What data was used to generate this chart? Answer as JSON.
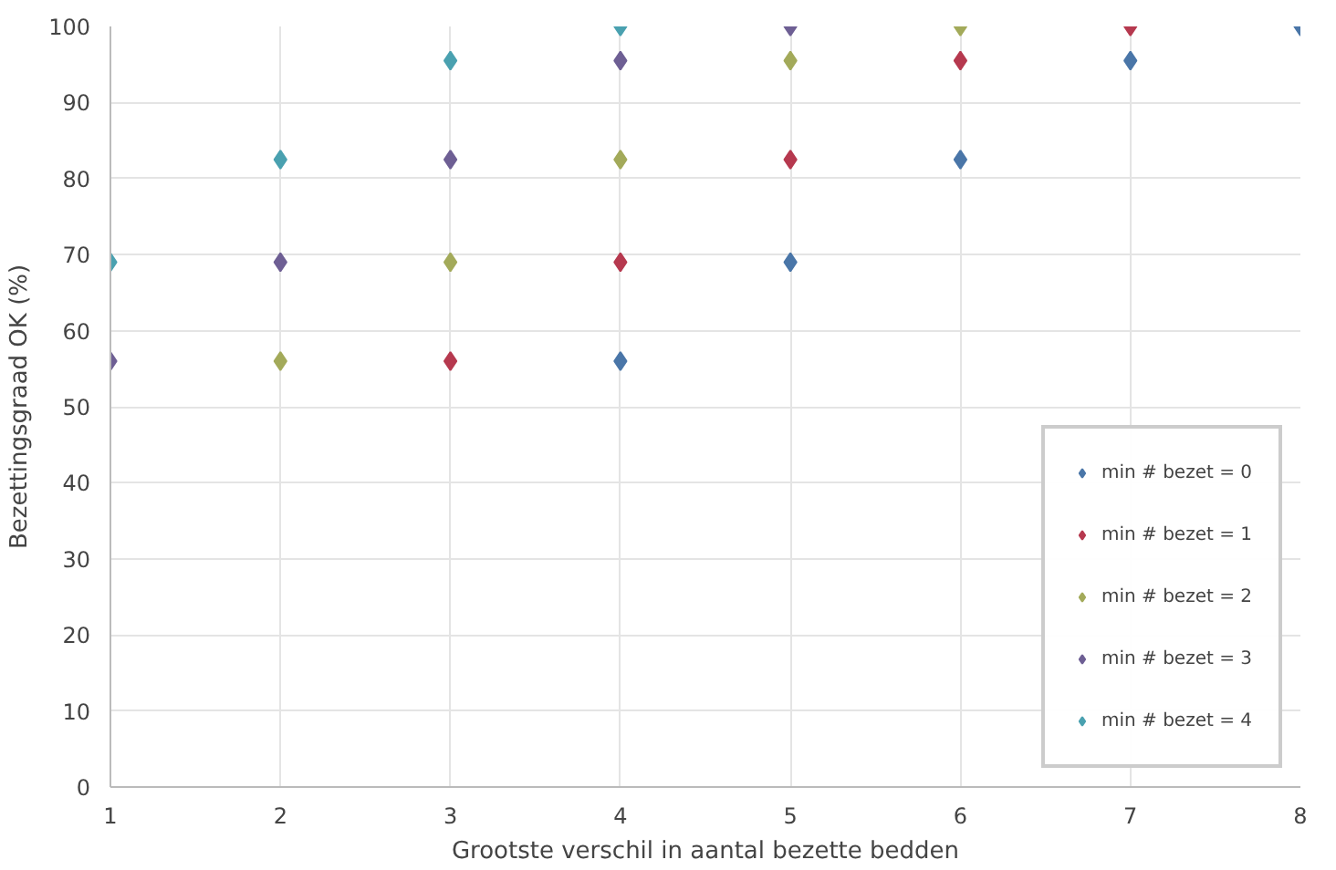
{
  "chart_data": {
    "type": "scatter",
    "xlabel": "Grootste verschil in aantal bezette bedden",
    "ylabel": "Bezettingsgraad OK (%)",
    "xlim": [
      1,
      8
    ],
    "xticks": [
      1,
      2,
      3,
      4,
      5,
      6,
      7,
      8
    ],
    "ylim": [
      0,
      100
    ],
    "yticks": [
      0,
      10,
      20,
      30,
      40,
      50,
      60,
      70,
      80,
      90,
      100
    ],
    "grid": true,
    "legend": "bottom right",
    "marker": "diamond",
    "series": [
      {
        "name": "min # bezet = 0",
        "color": "#4a76a8",
        "x": [
          4,
          5,
          6,
          7,
          8
        ],
        "values": [
          56,
          69,
          82.5,
          95.5,
          100
        ]
      },
      {
        "name": "min # bezet = 1",
        "color": "#b6394f",
        "x": [
          3,
          4,
          5,
          6,
          7
        ],
        "values": [
          56,
          69,
          82.5,
          95.5,
          100
        ]
      },
      {
        "name": "min # bezet = 2",
        "color": "#a3aa5a",
        "x": [
          2,
          3,
          4,
          5,
          6
        ],
        "values": [
          56,
          69,
          82.5,
          95.5,
          100
        ]
      },
      {
        "name": "min # bezet = 3",
        "color": "#6e5f94",
        "x": [
          1,
          2,
          3,
          4,
          5
        ],
        "values": [
          56,
          69,
          82.5,
          95.5,
          100
        ]
      },
      {
        "name": "min # bezet = 4",
        "color": "#4aa1b0",
        "x": [
          1,
          2,
          3,
          4
        ],
        "values": [
          69,
          82.5,
          95.5,
          100
        ]
      }
    ]
  }
}
